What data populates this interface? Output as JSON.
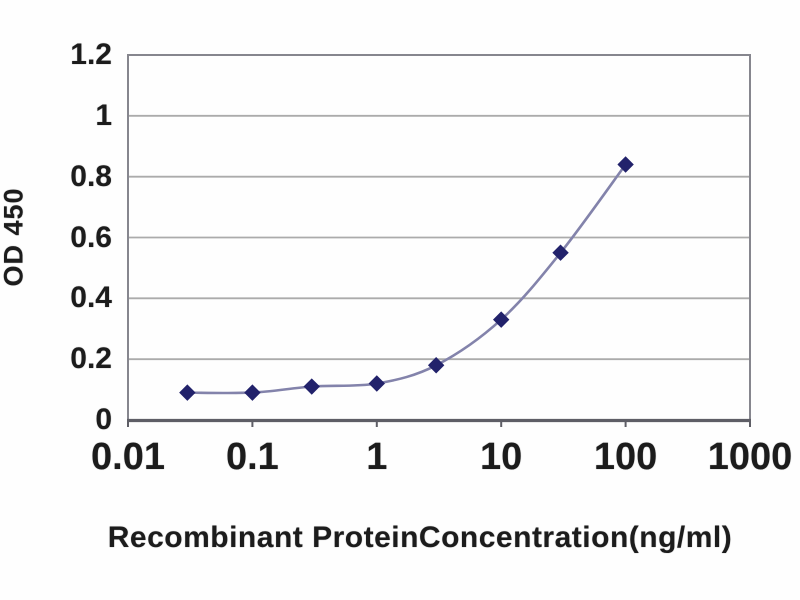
{
  "chart_data": {
    "type": "line",
    "title": "",
    "xlabel": "Recombinant ProteinConcentration(ng/ml)",
    "ylabel": "OD 450",
    "x_scale": "log",
    "xlim": [
      0.01,
      1000
    ],
    "ylim": [
      0,
      1.2
    ],
    "grid": "horizontal-only",
    "legend": "none",
    "marker": "diamond",
    "x": [
      0.03,
      0.1,
      0.3,
      1,
      3,
      10,
      30,
      100
    ],
    "y": [
      0.09,
      0.09,
      0.11,
      0.12,
      0.18,
      0.33,
      0.55,
      0.84
    ],
    "x_ticks": [
      {
        "value": 0.01,
        "label": "0.01"
      },
      {
        "value": 0.1,
        "label": "0.1"
      },
      {
        "value": 1,
        "label": "1"
      },
      {
        "value": 10,
        "label": "10"
      },
      {
        "value": 100,
        "label": "100"
      },
      {
        "value": 1000,
        "label": "1000"
      }
    ],
    "y_ticks": [
      {
        "value": 0,
        "label": "0"
      },
      {
        "value": 0.2,
        "label": "0.2"
      },
      {
        "value": 0.4,
        "label": "0.4"
      },
      {
        "value": 0.6,
        "label": "0.6"
      },
      {
        "value": 0.8,
        "label": "0.8"
      },
      {
        "value": 1,
        "label": "1"
      },
      {
        "value": 1.2,
        "label": "1.2"
      }
    ],
    "colors": {
      "marker": "#22226b",
      "line": "#8383ab",
      "grid": "#ababab",
      "plot_border": "#86868e",
      "bottom_axis": "#5e5e66",
      "text": "#1c1c1c",
      "background": "#fefefe"
    }
  }
}
